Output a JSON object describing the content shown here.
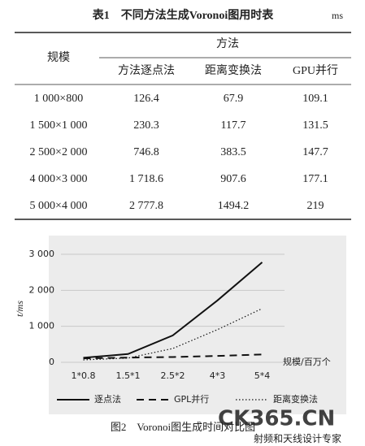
{
  "table_title": "表1　不同方法生成Voronoi图用时表",
  "unit": "ms",
  "table": {
    "header": {
      "scale": "规模",
      "method": "方法",
      "methods": [
        "方法逐点法",
        "距离变换法",
        "GPU并行"
      ]
    },
    "rows": [
      [
        "1 000×800",
        "126.4",
        "67.9",
        "109.1"
      ],
      [
        "1 500×1 000",
        "230.3",
        "117.7",
        "131.5"
      ],
      [
        "2 500×2 000",
        "746.8",
        "383.5",
        "147.7"
      ],
      [
        "4 000×3 000",
        "1 718.6",
        "907.6",
        "177.1"
      ],
      [
        "5 000×4 000",
        "2 777.8",
        "1494.2",
        "219"
      ]
    ]
  },
  "chart_data": {
    "type": "line",
    "y_label": "t/ms",
    "x_label": "规模/百万个",
    "categories": [
      "1*0.8",
      "1.5*1",
      "2.5*2",
      "4*3",
      "5*4"
    ],
    "series": [
      {
        "name": "逐点法",
        "color": "#111111",
        "dash": "solid",
        "values": [
          126.4,
          230.3,
          746.8,
          1718.6,
          2777.8
        ]
      },
      {
        "name": "GPL并行",
        "color": "#111111",
        "dash": "dashed",
        "values": [
          109.1,
          131.5,
          147.7,
          177.1,
          219
        ]
      },
      {
        "name": "距离变换法",
        "color": "#111111",
        "dash": "dotted",
        "values": [
          67.9,
          117.7,
          383.5,
          907.6,
          1494.2
        ]
      }
    ],
    "ylim": [
      0,
      3000
    ],
    "yticks": [
      0,
      {
        "value": 1000,
        "label": "1 000"
      },
      {
        "value": 2000,
        "label": "2 000"
      },
      {
        "value": 3000,
        "label": "3 000"
      }
    ],
    "grid": true
  },
  "caption": "图2　Voronoi图生成时间对比图",
  "watermark": {
    "logo": "CK365.CN",
    "tagline": "射频和天线设计专家"
  }
}
